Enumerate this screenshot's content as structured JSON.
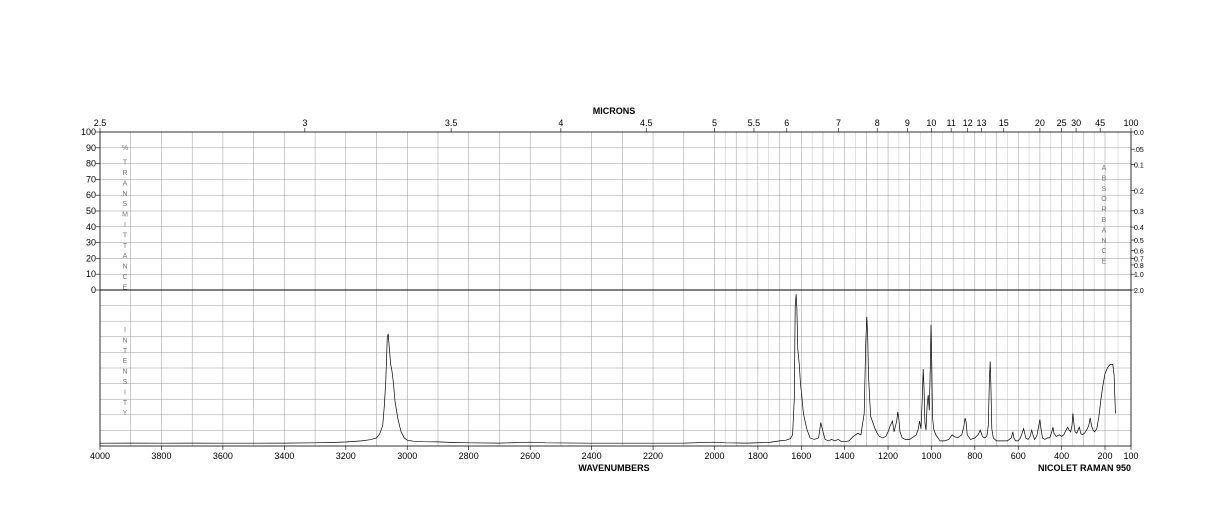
{
  "chart_data": {
    "type": "line",
    "title": "MICRONS",
    "xlabel": "WAVENUMBERS",
    "instrument_label": "NICOLET RAMAN 950",
    "x_range": [
      4000,
      100
    ],
    "x_ticks": [
      4000,
      3800,
      3600,
      3400,
      3200,
      3000,
      2800,
      2600,
      2400,
      2200,
      2000,
      1800,
      1600,
      1400,
      1200,
      1000,
      800,
      600,
      400,
      200,
      100
    ],
    "micron_ticks": [
      "2.5",
      "3",
      "3.5",
      "4",
      "4.5",
      "5",
      "5.5",
      "6",
      "7",
      "8",
      "9",
      "10",
      "11",
      "12",
      "13",
      "15",
      "20",
      "25",
      "30",
      "45",
      "100"
    ],
    "transmittance_ticks": [
      "100",
      "90",
      "80",
      "70",
      "60",
      "50",
      "40",
      "30",
      "20",
      "10",
      "0"
    ],
    "absorbance_ticks": [
      "0.0",
      ".05",
      "0.1",
      "0.2",
      "0.3",
      "0.4",
      "0.5",
      "0.6",
      "0.7",
      "0.8",
      "1.0",
      "2.0"
    ],
    "left_vertical_label_top": "% TRANSMITTANCE",
    "left_vertical_label_bottom": "INTENSITY",
    "right_vertical_label": "ABSORBANCE",
    "y_range": [
      0,
      100
    ],
    "series": [
      {
        "values": [
          [
            4000,
            0.5
          ],
          [
            3900,
            0.6
          ],
          [
            3800,
            0.5
          ],
          [
            3700,
            0.6
          ],
          [
            3600,
            0.5
          ],
          [
            3500,
            0.5
          ],
          [
            3400,
            0.6
          ],
          [
            3300,
            0.8
          ],
          [
            3250,
            1.0
          ],
          [
            3200,
            1.3
          ],
          [
            3150,
            2.0
          ],
          [
            3120,
            2.8
          ],
          [
            3100,
            4.0
          ],
          [
            3090,
            6.5
          ],
          [
            3080,
            12
          ],
          [
            3075,
            24
          ],
          [
            3070,
            40
          ],
          [
            3065,
            70
          ],
          [
            3062,
            72
          ],
          [
            3058,
            62
          ],
          [
            3054,
            52
          ],
          [
            3050,
            48
          ],
          [
            3045,
            40
          ],
          [
            3040,
            28
          ],
          [
            3030,
            16
          ],
          [
            3020,
            8
          ],
          [
            3010,
            4
          ],
          [
            3000,
            2.5
          ],
          [
            2980,
            1.8
          ],
          [
            2950,
            1.5
          ],
          [
            2900,
            1.4
          ],
          [
            2850,
            1.0
          ],
          [
            2800,
            0.8
          ],
          [
            2700,
            0.6
          ],
          [
            2600,
            1.2
          ],
          [
            2550,
            0.8
          ],
          [
            2400,
            0.5
          ],
          [
            2200,
            0.5
          ],
          [
            2100,
            0.6
          ],
          [
            2000,
            1.2
          ],
          [
            1950,
            0.8
          ],
          [
            1850,
            0.6
          ],
          [
            1750,
            1.0
          ],
          [
            1700,
            2.0
          ],
          [
            1670,
            2.5
          ],
          [
            1650,
            3.5
          ],
          [
            1640,
            6
          ],
          [
            1632,
            30
          ],
          [
            1628,
            90
          ],
          [
            1624,
            98
          ],
          [
            1620,
            88
          ],
          [
            1616,
            62
          ],
          [
            1612,
            56
          ],
          [
            1608,
            50
          ],
          [
            1604,
            40
          ],
          [
            1598,
            32
          ],
          [
            1590,
            20
          ],
          [
            1575,
            10
          ],
          [
            1560,
            4
          ],
          [
            1540,
            3
          ],
          [
            1520,
            4
          ],
          [
            1510,
            14
          ],
          [
            1500,
            8
          ],
          [
            1490,
            3
          ],
          [
            1475,
            2
          ],
          [
            1460,
            3
          ],
          [
            1445,
            2
          ],
          [
            1430,
            3
          ],
          [
            1415,
            1.5
          ],
          [
            1400,
            1.5
          ],
          [
            1380,
            2
          ],
          [
            1360,
            5
          ],
          [
            1340,
            7
          ],
          [
            1325,
            6
          ],
          [
            1310,
            20
          ],
          [
            1303,
            65
          ],
          [
            1298,
            83
          ],
          [
            1294,
            70
          ],
          [
            1290,
            45
          ],
          [
            1285,
            30
          ],
          [
            1280,
            18
          ],
          [
            1270,
            14
          ],
          [
            1260,
            10
          ],
          [
            1250,
            7
          ],
          [
            1240,
            5
          ],
          [
            1225,
            4
          ],
          [
            1210,
            5
          ],
          [
            1200,
            8
          ],
          [
            1190,
            12
          ],
          [
            1180,
            15
          ],
          [
            1172,
            8
          ],
          [
            1160,
            15
          ],
          [
            1155,
            21
          ],
          [
            1150,
            16
          ],
          [
            1145,
            8
          ],
          [
            1135,
            4
          ],
          [
            1120,
            3
          ],
          [
            1100,
            3
          ],
          [
            1080,
            5
          ],
          [
            1070,
            6
          ],
          [
            1060,
            10
          ],
          [
            1055,
            15
          ],
          [
            1048,
            10
          ],
          [
            1042,
            30
          ],
          [
            1038,
            49
          ],
          [
            1034,
            35
          ],
          [
            1030,
            14
          ],
          [
            1025,
            9
          ],
          [
            1020,
            25
          ],
          [
            1015,
            32
          ],
          [
            1010,
            22
          ],
          [
            1005,
            53
          ],
          [
            1002,
            78
          ],
          [
            999,
            55
          ],
          [
            995,
            18
          ],
          [
            990,
            10
          ],
          [
            980,
            6
          ],
          [
            970,
            4
          ],
          [
            960,
            2
          ],
          [
            940,
            2
          ],
          [
            920,
            3
          ],
          [
            905,
            6
          ],
          [
            895,
            5
          ],
          [
            880,
            4
          ],
          [
            860,
            6
          ],
          [
            850,
            12
          ],
          [
            845,
            17
          ],
          [
            840,
            14
          ],
          [
            835,
            6
          ],
          [
            820,
            3
          ],
          [
            800,
            4
          ],
          [
            785,
            6
          ],
          [
            775,
            9
          ],
          [
            765,
            5
          ],
          [
            755,
            4
          ],
          [
            745,
            5
          ],
          [
            738,
            12
          ],
          [
            733,
            42
          ],
          [
            729,
            54
          ],
          [
            726,
            38
          ],
          [
            722,
            10
          ],
          [
            715,
            4
          ],
          [
            700,
            2
          ],
          [
            680,
            2
          ],
          [
            650,
            2
          ],
          [
            632,
            4
          ],
          [
            625,
            8
          ],
          [
            620,
            4
          ],
          [
            612,
            2
          ],
          [
            600,
            2
          ],
          [
            590,
            4
          ],
          [
            580,
            8
          ],
          [
            575,
            10
          ],
          [
            570,
            7
          ],
          [
            565,
            4
          ],
          [
            555,
            3
          ],
          [
            545,
            5
          ],
          [
            538,
            9
          ],
          [
            532,
            6
          ],
          [
            525,
            3
          ],
          [
            515,
            5
          ],
          [
            505,
            12
          ],
          [
            500,
            16
          ],
          [
            495,
            10
          ],
          [
            488,
            4
          ],
          [
            478,
            3
          ],
          [
            465,
            4
          ],
          [
            455,
            4
          ],
          [
            445,
            8
          ],
          [
            440,
            11
          ],
          [
            435,
            7
          ],
          [
            425,
            5
          ],
          [
            410,
            6
          ],
          [
            400,
            5
          ],
          [
            390,
            6
          ],
          [
            380,
            9
          ],
          [
            372,
            11
          ],
          [
            365,
            9
          ],
          [
            358,
            8
          ],
          [
            352,
            12
          ],
          [
            348,
            20
          ],
          [
            344,
            14
          ],
          [
            338,
            8
          ],
          [
            330,
            7
          ],
          [
            322,
            10
          ],
          [
            318,
            11
          ],
          [
            312,
            7
          ],
          [
            305,
            6
          ],
          [
            295,
            7
          ],
          [
            285,
            9
          ],
          [
            275,
            12
          ],
          [
            268,
            17
          ],
          [
            262,
            12
          ],
          [
            255,
            9
          ],
          [
            248,
            8
          ],
          [
            238,
            10
          ],
          [
            228,
            18
          ],
          [
            220,
            28
          ],
          [
            210,
            38
          ],
          [
            200,
            46
          ],
          [
            190,
            50
          ],
          [
            180,
            52
          ],
          [
            170,
            52
          ],
          [
            165,
            45
          ],
          [
            162,
            30
          ],
          [
            160,
            20
          ]
        ]
      }
    ]
  }
}
